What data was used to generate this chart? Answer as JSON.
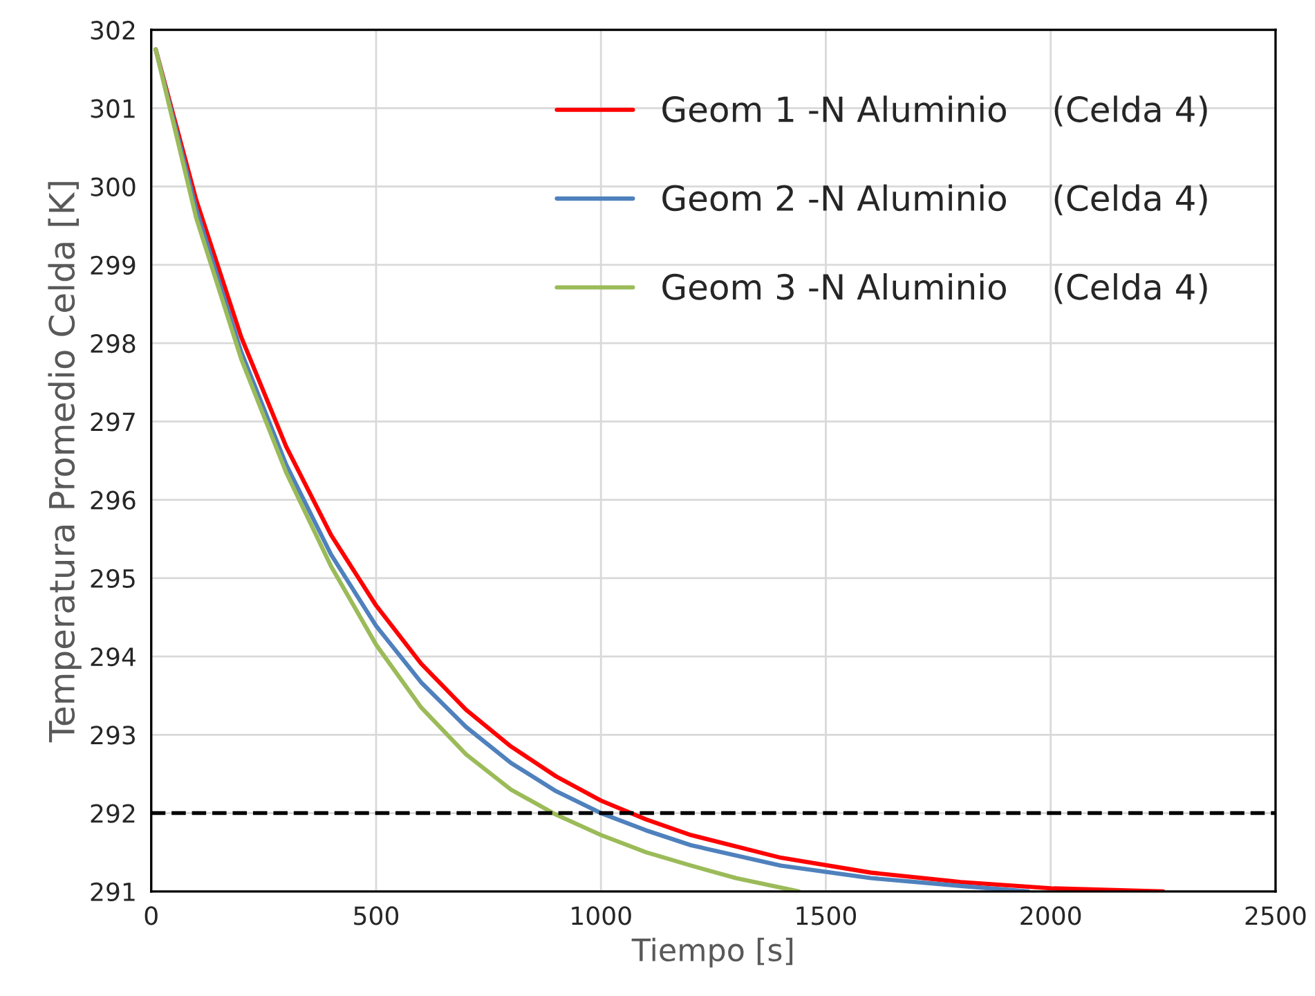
{
  "chart_data": {
    "type": "line",
    "xlabel": "Tiempo [s]",
    "ylabel": "Temperatura Promedio Celda [K]",
    "xlim": [
      0,
      2500
    ],
    "xticks": [
      0,
      500,
      1000,
      1500,
      2000,
      2500
    ],
    "ylim": [
      291,
      302
    ],
    "yticks": [
      291,
      292,
      293,
      294,
      295,
      296,
      297,
      298,
      299,
      300,
      301,
      302
    ],
    "grid": true,
    "legend": "top right",
    "line_style": "solid",
    "marker": "none",
    "ref_lines": [
      {
        "axis": "y",
        "value": 292,
        "color": "#000000",
        "line_style": "dashed"
      }
    ],
    "series": [
      {
        "name": "Geom 1 -N Aluminio    (Celda 4)",
        "color": "#ff0000",
        "x": [
          10,
          100,
          200,
          300,
          400,
          500,
          600,
          700,
          800,
          900,
          1000,
          1100,
          1200,
          1400,
          1600,
          1800,
          2000,
          2250
        ],
        "values": [
          301.75,
          299.83,
          298.08,
          296.68,
          295.55,
          294.65,
          293.91,
          293.32,
          292.85,
          292.47,
          292.16,
          291.92,
          291.72,
          291.43,
          291.24,
          291.12,
          291.04,
          291.0
        ]
      },
      {
        "name": "Geom 2 -N Aluminio    (Celda 4)",
        "color": "#4f81bd",
        "x": [
          10,
          100,
          200,
          300,
          400,
          500,
          600,
          700,
          800,
          900,
          1000,
          1100,
          1200,
          1400,
          1600,
          1800,
          1950
        ],
        "values": [
          301.75,
          299.71,
          297.89,
          296.45,
          295.3,
          294.39,
          293.67,
          293.1,
          292.64,
          292.28,
          292.0,
          291.78,
          291.59,
          291.33,
          291.17,
          291.07,
          291.0
        ]
      },
      {
        "name": "Geom 3 -N Aluminio    (Celda 4)",
        "color": "#9bbb59",
        "x": [
          10,
          100,
          200,
          300,
          400,
          500,
          600,
          700,
          800,
          900,
          1000,
          1100,
          1200,
          1300,
          1440
        ],
        "values": [
          301.75,
          299.6,
          297.8,
          296.35,
          295.15,
          294.15,
          293.35,
          292.75,
          292.3,
          291.98,
          291.72,
          291.5,
          291.33,
          291.17,
          291.0
        ]
      }
    ]
  }
}
